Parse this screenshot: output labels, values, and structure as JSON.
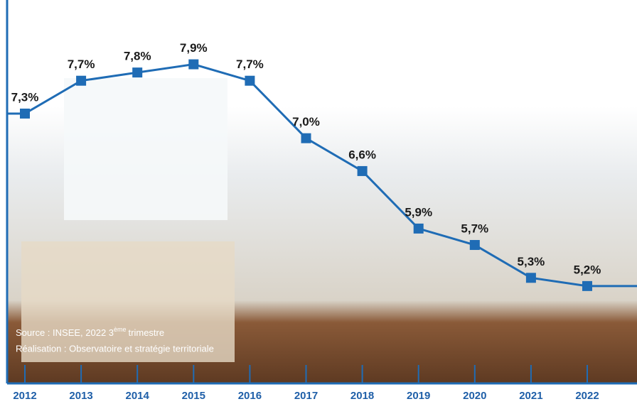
{
  "chart_data": {
    "type": "line",
    "categories": [
      "2012",
      "2013",
      "2014",
      "2015",
      "2016",
      "2017",
      "2018",
      "2019",
      "2020",
      "2021",
      "2022"
    ],
    "values": [
      7.3,
      7.7,
      7.8,
      7.9,
      7.7,
      7.0,
      6.6,
      5.9,
      5.7,
      5.3,
      5.2
    ],
    "value_labels": [
      "7,3%",
      "7,7%",
      "7,8%",
      "7,9%",
      "7,7%",
      "7,0%",
      "6,6%",
      "5,9%",
      "5,7%",
      "5,3%",
      "5,2%"
    ],
    "color": "#1f6cb5",
    "ylim": [
      5,
      8
    ],
    "source_prefix": "Source : INSEE, 2022 3",
    "source_superscript": "ème",
    "source_suffix": "trimestre",
    "credit": "Réalisation : Observatoire et stratégie territoriale"
  }
}
